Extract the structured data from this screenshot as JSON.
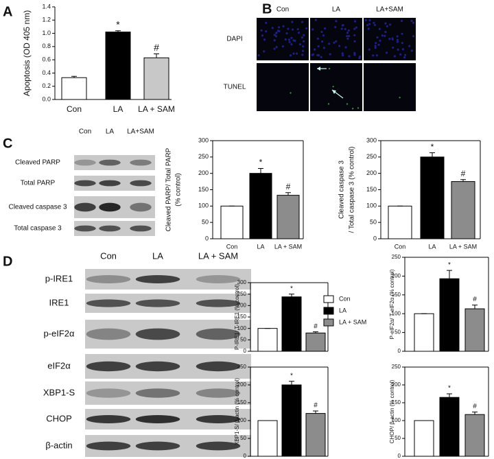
{
  "panels": [
    "A",
    "B",
    "C",
    "D"
  ],
  "panel_b": {
    "columns": [
      "Con",
      "LA",
      "LA+SAM"
    ],
    "rows": [
      "DAPI",
      "TUNEL"
    ]
  },
  "blot_c": {
    "columns": [
      "Con",
      "LA",
      "LA+SAM"
    ],
    "rows": [
      "Cleaved PARP",
      "Total PARP",
      "Cleaved caspase 3",
      "Total caspase 3"
    ]
  },
  "blot_d": {
    "columns": [
      "Con",
      "LA",
      "LA + SAM"
    ],
    "rows": [
      "p-IRE1",
      "IRE1",
      "p-eIF2α",
      "eIF2α",
      "XBP1-S",
      "CHOP",
      "β-actin"
    ]
  },
  "chart_data": [
    {
      "type": "bar",
      "ylabel": "Apoptosis (OD 405 nm)",
      "categories": [
        "Con",
        "LA",
        "LA + SAM"
      ],
      "values": [
        0.33,
        1.02,
        0.63
      ],
      "errors": [
        0.02,
        0.02,
        0.06
      ],
      "markers": [
        null,
        "*",
        "#"
      ],
      "colors": [
        "#ffffff",
        "#000000",
        "#c8c8c8"
      ],
      "ylim": [
        0,
        1.4
      ],
      "yticks": [
        {
          "value": 0,
          "label": "0.0"
        },
        {
          "value": 0.2,
          "label": "0.2"
        },
        {
          "value": 0.4,
          "label": "0.4"
        },
        {
          "value": 0.6,
          "label": "0.6"
        },
        {
          "value": 0.8,
          "label": "0.8"
        },
        {
          "value": 1,
          "label": "1.0"
        },
        {
          "value": 1.2,
          "label": "1.2"
        },
        {
          "value": 1.4,
          "label": "1.4"
        }
      ]
    },
    {
      "type": "bar",
      "ylabel": [
        "Cleaved PARP/ Total PARP",
        "(% control)"
      ],
      "categories": [
        "Con",
        "LA",
        "LA + SAM"
      ],
      "values": [
        100,
        200,
        133
      ],
      "errors": [
        0,
        15,
        8
      ],
      "markers": [
        null,
        "*",
        "#"
      ],
      "colors": [
        "#ffffff",
        "#000000",
        "#8c8c8c"
      ],
      "ylim": [
        0,
        300
      ],
      "yticks": [
        0,
        50,
        100,
        150,
        200,
        250,
        300
      ]
    },
    {
      "type": "bar",
      "ylabel": [
        "Cleaved caspase 3",
        "/ Total caspase 3 (% control)"
      ],
      "categories": [
        "Con",
        "LA",
        "LA + SAM"
      ],
      "values": [
        100,
        250,
        175
      ],
      "errors": [
        0,
        13,
        6
      ],
      "markers": [
        null,
        "*",
        "#"
      ],
      "colors": [
        "#ffffff",
        "#000000",
        "#8c8c8c"
      ],
      "ylim": [
        0,
        300
      ],
      "yticks": [
        0,
        50,
        100,
        150,
        200,
        250,
        300
      ]
    },
    {
      "type": "bar",
      "ylabel": "P-IRE1/ T-IRE1 (% control)",
      "legend": true,
      "series": [
        {
          "name": "Con",
          "color": "#ffffff",
          "values": [
            100
          ],
          "errors": [
            0
          ]
        },
        {
          "name": "LA",
          "color": "#000000",
          "values": [
            238
          ],
          "errors": [
            12
          ]
        },
        {
          "name": "LA + SAM",
          "color": "#8c8c8c",
          "values": [
            80
          ],
          "errors": [
            5
          ]
        }
      ],
      "markers": [
        null,
        "*",
        "#"
      ],
      "ylim": [
        0,
        300
      ],
      "yticks": [
        0,
        50,
        100,
        150,
        200,
        250,
        300
      ]
    },
    {
      "type": "bar",
      "ylabel": "P-eIF2α/ T-eIF2α (% control)",
      "values": [
        100,
        193,
        113
      ],
      "errors": [
        0,
        22,
        10
      ],
      "markers": [
        null,
        "*",
        "#"
      ],
      "colors": [
        "#ffffff",
        "#000000",
        "#8c8c8c"
      ],
      "ylim": [
        0,
        250
      ],
      "yticks": [
        0,
        50,
        100,
        150,
        200,
        250
      ]
    },
    {
      "type": "bar",
      "ylabel": "XBP1-S/ β-actin (% control)",
      "values": [
        100,
        200,
        120
      ],
      "errors": [
        0,
        10,
        7
      ],
      "markers": [
        null,
        "*",
        "#"
      ],
      "colors": [
        "#ffffff",
        "#000000",
        "#8c8c8c"
      ],
      "ylim": [
        0,
        250
      ],
      "yticks": [
        0,
        50,
        100,
        150,
        200,
        250
      ]
    },
    {
      "type": "bar",
      "ylabel": "CHOP/ β-actin (% control)",
      "values": [
        100,
        165,
        117
      ],
      "errors": [
        0,
        10,
        7
      ],
      "markers": [
        null,
        "*",
        "#"
      ],
      "colors": [
        "#ffffff",
        "#000000",
        "#8c8c8c"
      ],
      "ylim": [
        0,
        250
      ],
      "yticks": [
        0,
        50,
        100,
        150,
        200,
        250
      ]
    }
  ]
}
